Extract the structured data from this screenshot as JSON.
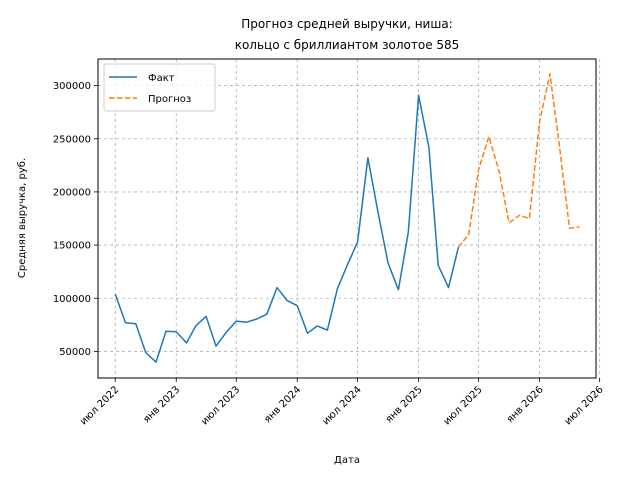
{
  "chart_data": {
    "type": "line",
    "title": [
      "Прогноз средней выручки, ниша:",
      "кольцо с бриллиантом золотое 585"
    ],
    "xlabel": "Дата",
    "ylabel": "Средняя выручка, руб.",
    "xlim": [
      "2022-05-10",
      "2026-06-20"
    ],
    "ylim": [
      25000,
      325000
    ],
    "x_ticks": [
      {
        "date": "2022-07-01",
        "label": "июл 2022"
      },
      {
        "date": "2023-01-01",
        "label": "янв 2023"
      },
      {
        "date": "2023-07-01",
        "label": "июл 2023"
      },
      {
        "date": "2024-01-01",
        "label": "янв 2024"
      },
      {
        "date": "2024-07-01",
        "label": "июл 2024"
      },
      {
        "date": "2025-01-01",
        "label": "янв 2025"
      },
      {
        "date": "2025-07-01",
        "label": "июл 2025"
      },
      {
        "date": "2026-01-01",
        "label": "янв 2026"
      },
      {
        "date": "2026-07-01",
        "label": "июл 2026"
      }
    ],
    "y_ticks": [
      {
        "value": 50000,
        "label": "50000"
      },
      {
        "value": 100000,
        "label": "100000"
      },
      {
        "value": 150000,
        "label": "150000"
      },
      {
        "value": 200000,
        "label": "200000"
      },
      {
        "value": 250000,
        "label": "250000"
      },
      {
        "value": 300000,
        "label": "300000"
      }
    ],
    "grid": true,
    "legend_position": "top-left",
    "series": [
      {
        "name": "Факт",
        "color": "#1f77b4",
        "style": "solid",
        "points": [
          [
            "2022-07-01",
            104000
          ],
          [
            "2022-08-01",
            77000
          ],
          [
            "2022-09-01",
            76000
          ],
          [
            "2022-10-01",
            49000
          ],
          [
            "2022-11-01",
            40000
          ],
          [
            "2022-12-01",
            69000
          ],
          [
            "2023-01-01",
            68500
          ],
          [
            "2023-02-01",
            58000
          ],
          [
            "2023-03-01",
            74000
          ],
          [
            "2023-04-01",
            83000
          ],
          [
            "2023-05-01",
            55000
          ],
          [
            "2023-06-01",
            68000
          ],
          [
            "2023-07-01",
            78500
          ],
          [
            "2023-08-01",
            77500
          ],
          [
            "2023-09-01",
            80500
          ],
          [
            "2023-10-01",
            85000
          ],
          [
            "2023-11-01",
            110000
          ],
          [
            "2023-12-01",
            98000
          ],
          [
            "2024-01-01",
            93000
          ],
          [
            "2024-02-01",
            67000
          ],
          [
            "2024-03-01",
            74000
          ],
          [
            "2024-04-01",
            70000
          ],
          [
            "2024-05-01",
            109000
          ],
          [
            "2024-06-01",
            132000
          ],
          [
            "2024-07-01",
            153000
          ],
          [
            "2024-08-01",
            232000
          ],
          [
            "2024-09-01",
            180000
          ],
          [
            "2024-10-01",
            133000
          ],
          [
            "2024-11-01",
            108000
          ],
          [
            "2024-12-01",
            162000
          ],
          [
            "2025-01-01",
            291000
          ],
          [
            "2025-02-01",
            242000
          ],
          [
            "2025-03-01",
            131000
          ],
          [
            "2025-04-01",
            110000
          ],
          [
            "2025-05-01",
            148000
          ]
        ]
      },
      {
        "name": "Прогноз",
        "color": "#ff7f0e",
        "style": "dashed",
        "points": [
          [
            "2025-05-01",
            148000
          ],
          [
            "2025-06-01",
            160000
          ],
          [
            "2025-07-01",
            221000
          ],
          [
            "2025-08-01",
            252000
          ],
          [
            "2025-09-01",
            219000
          ],
          [
            "2025-10-01",
            171000
          ],
          [
            "2025-11-01",
            178000
          ],
          [
            "2025-12-01",
            175000
          ],
          [
            "2026-01-01",
            266000
          ],
          [
            "2026-02-01",
            311000
          ],
          [
            "2026-03-01",
            245000
          ],
          [
            "2026-04-01",
            166000
          ],
          [
            "2026-05-01",
            167000
          ]
        ]
      }
    ]
  }
}
